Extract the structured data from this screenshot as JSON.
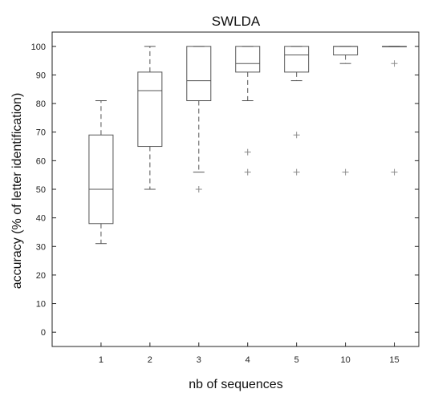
{
  "chart_data": {
    "type": "box",
    "title": "SWLDA",
    "xlabel": "nb of sequences",
    "ylabel": "accuracy (% of letter identification)",
    "ylim": [
      -5,
      105
    ],
    "yticks": [
      0,
      10,
      20,
      30,
      40,
      50,
      60,
      70,
      80,
      90,
      100
    ],
    "categories": [
      "1",
      "2",
      "3",
      "4",
      "5",
      "10",
      "15"
    ],
    "boxes": [
      {
        "category": "1",
        "whisker_low": 31,
        "q1": 38,
        "median": 50,
        "q3": 69,
        "whisker_high": 81,
        "outliers": []
      },
      {
        "category": "2",
        "whisker_low": 50,
        "q1": 65,
        "median": 84.5,
        "q3": 91,
        "whisker_high": 100,
        "outliers": []
      },
      {
        "category": "3",
        "whisker_low": 56,
        "q1": 81,
        "median": 88,
        "q3": 100,
        "whisker_high": 100,
        "outliers": [
          50
        ]
      },
      {
        "category": "4",
        "whisker_low": 81,
        "q1": 91,
        "median": 94,
        "q3": 100,
        "whisker_high": 100,
        "outliers": [
          63,
          56
        ]
      },
      {
        "category": "5",
        "whisker_low": 88,
        "q1": 91,
        "median": 97,
        "q3": 100,
        "whisker_high": 100,
        "outliers": [
          69,
          56
        ]
      },
      {
        "category": "10",
        "whisker_low": 94,
        "q1": 97,
        "median": 100,
        "q3": 100,
        "whisker_high": 100,
        "outliers": [
          56
        ]
      },
      {
        "category": "15",
        "whisker_low": 100,
        "q1": 100,
        "median": 100,
        "q3": 100,
        "whisker_high": 100,
        "outliers": [
          94,
          56
        ]
      }
    ],
    "grid": false,
    "legend": "none",
    "colors": {
      "box": "#555555",
      "median": "#555555",
      "whisker": "#555555",
      "outlier": "#888888",
      "frame": "#222222"
    }
  }
}
